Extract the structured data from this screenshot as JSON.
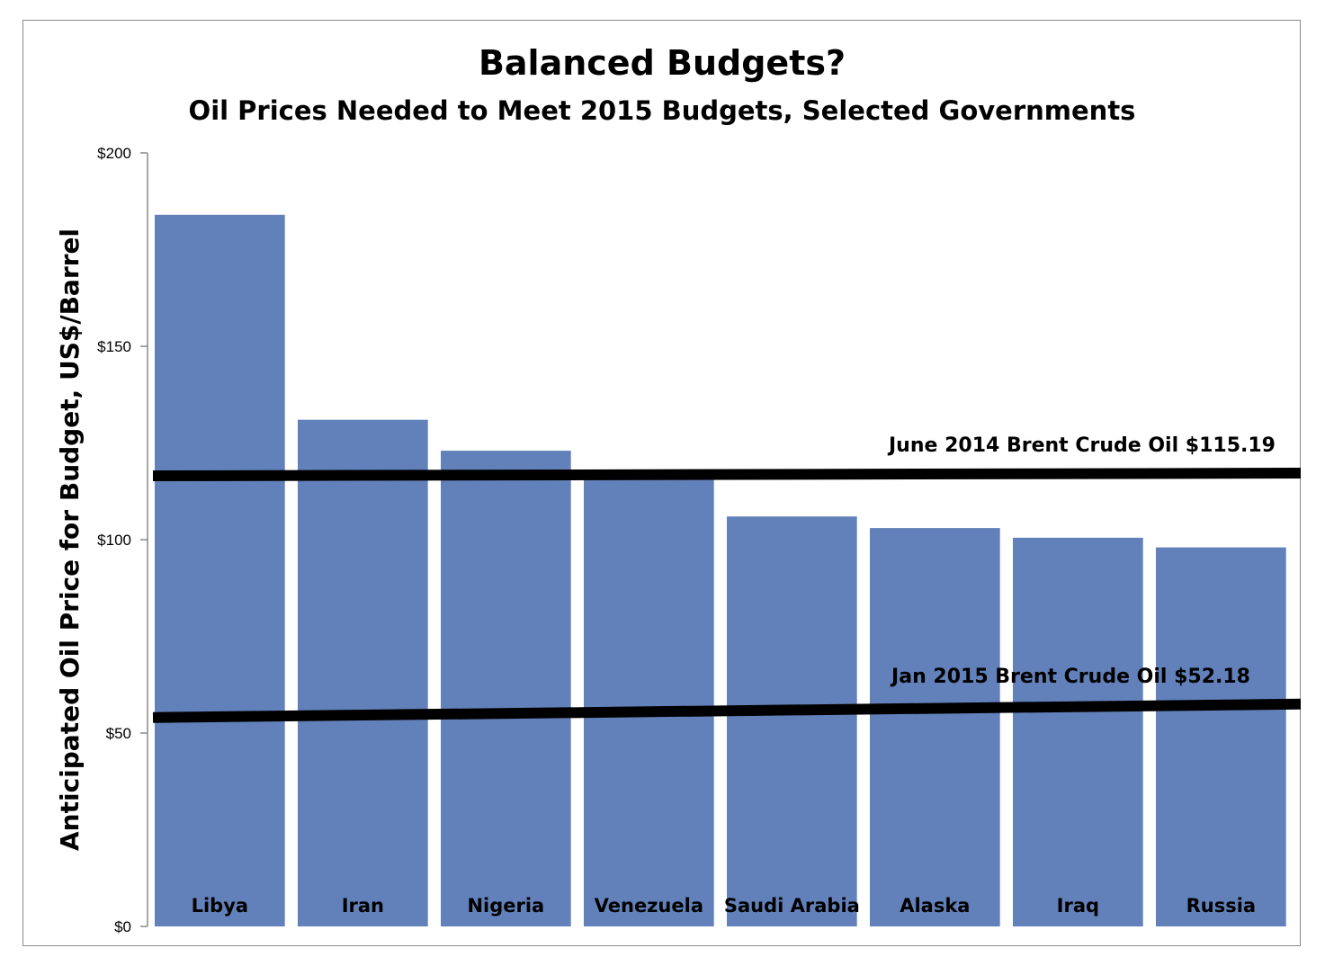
{
  "chart_data": {
    "type": "bar",
    "title": "Balanced Budgets?",
    "subtitle": "Oil Prices Needed to Meet 2015 Budgets, Selected Governments",
    "xlabel": "",
    "ylabel": "Anticipated Oil Price for Budget, US$/Barrel",
    "ylim": [
      0,
      200
    ],
    "yticks": [
      0,
      50,
      100,
      150,
      200
    ],
    "ytick_labels": [
      "$0",
      "$50",
      "$100",
      "$150",
      "$200"
    ],
    "categories": [
      "Libya",
      "Iran",
      "Nigeria",
      "Venezuela",
      "Saudi Arabia",
      "Alaska",
      "Iraq",
      "Russia"
    ],
    "values": [
      184,
      131,
      123,
      117,
      106,
      103,
      100.5,
      98
    ],
    "bar_color": "#6281ba",
    "grid": false,
    "legend": "none",
    "reference_lines": [
      {
        "label": "June 2014 Brent Crude Oil $115.19",
        "value": 115.19,
        "y_start": 116.5,
        "y_end": 117.2
      },
      {
        "label": "Jan 2015 Brent Crude Oil $52.18",
        "value": 52.18,
        "y_start": 54,
        "y_end": 57.5
      }
    ]
  }
}
